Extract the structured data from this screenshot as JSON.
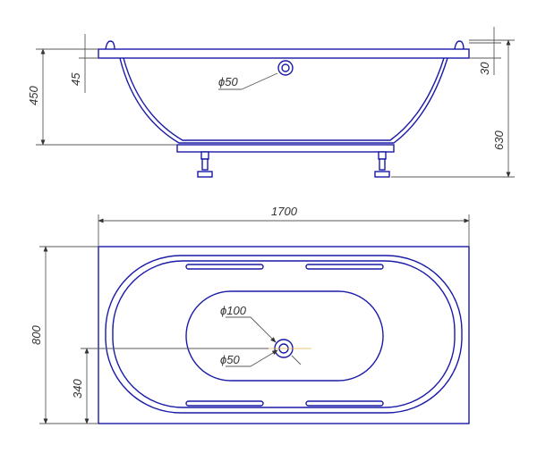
{
  "labels": {
    "height_450": "450",
    "depth_45": "45",
    "rim_30": "30",
    "total_630": "630",
    "drain_side": "ϕ50",
    "length_1700": "1700",
    "width_800": "800",
    "offset_340": "340",
    "drain_outer": "ϕ100",
    "drain_inner": "ϕ50"
  },
  "colors": {
    "outline": "#1a1aa8",
    "dimension": "#5a5a5a",
    "axis": "#e0b040"
  }
}
